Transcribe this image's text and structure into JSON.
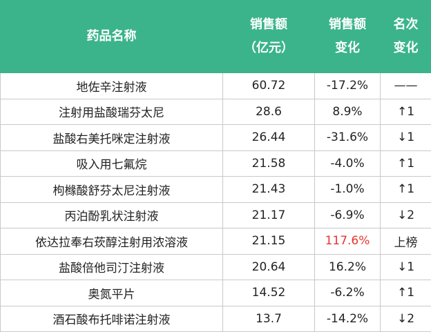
{
  "table": {
    "header": [
      [
        "药品名称"
      ],
      [
        "销售额",
        "（亿元）"
      ],
      [
        "销售额",
        "变化"
      ],
      [
        "名次",
        "变化"
      ]
    ],
    "rows": [
      [
        "地佐辛注射液",
        "60.72",
        "-17.2%",
        "——"
      ],
      [
        "注射用盐酸瑞芬太尼",
        "28.6",
        "8.9%",
        "↑1"
      ],
      [
        "盐酸右美托咪定注射液",
        "26.44",
        "-31.6%",
        "↓1"
      ],
      [
        "吸入用七氟烷",
        "21.58",
        "-4.0%",
        "↑1"
      ],
      [
        "枸橼酸舒芬太尼注射液",
        "21.43",
        "-1.0%",
        "↑1"
      ],
      [
        "丙泊酚乳状注射液",
        "21.17",
        "-6.9%",
        "↓2"
      ],
      [
        "依达拉奉右莰醇注射用浓溶液",
        "21.15",
        "117.6%",
        "上榜"
      ],
      [
        "盐酸倍他司汀注射液",
        "20.64",
        "16.2%",
        "↓1"
      ],
      [
        "奥氮平片",
        "14.52",
        "-6.2%",
        "↑1"
      ],
      [
        "酒石酸布托啡诺注射液",
        "13.7",
        "-14.2%",
        "↓2"
      ]
    ],
    "highlight_cells": [
      {
        "row": 6,
        "col": 2,
        "color": "#e8342f"
      }
    ]
  }
}
